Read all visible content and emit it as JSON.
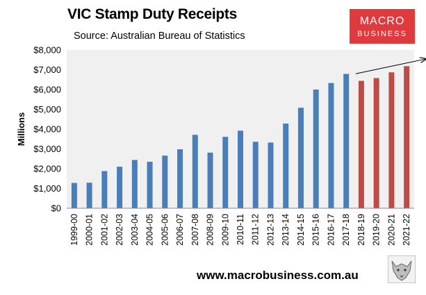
{
  "title": "VIC Stamp Duty Receipts",
  "subtitle": "Source: Australian Bureau of Statistics",
  "logo": {
    "line1": "MACRO",
    "line2": "BUSINESS",
    "color": "#e03a3e"
  },
  "footer_url": "www.macrobusiness.com.au",
  "chart_data": {
    "type": "bar",
    "ylabel": "Millions",
    "xlabel": "",
    "ylim": [
      0,
      8000
    ],
    "yticks": [
      0,
      1000,
      2000,
      3000,
      4000,
      5000,
      6000,
      7000,
      8000
    ],
    "ytick_labels": [
      "$0",
      "$1,000",
      "$2,000",
      "$3,000",
      "$4,000",
      "$5,000",
      "$6,000",
      "$7,000",
      "$8,000"
    ],
    "grid": false,
    "plot_background": "#f0f0f0",
    "categories": [
      "1999-00",
      "2000-01",
      "2001-02",
      "2002-03",
      "2003-04",
      "2004-05",
      "2005-06",
      "2006-07",
      "2007-08",
      "2008-09",
      "2009-10",
      "2010-11",
      "2011-12",
      "2012-13",
      "2013-14",
      "2014-15",
      "2015-16",
      "2016-17",
      "2017-18",
      "2018-19",
      "2019-20",
      "2020-21",
      "2021-22"
    ],
    "values": [
      1280,
      1290,
      1880,
      2100,
      2440,
      2350,
      2660,
      2980,
      3710,
      2810,
      3610,
      3920,
      3360,
      3320,
      4280,
      5080,
      6000,
      6330,
      6790,
      6440,
      6580,
      6870,
      7180
    ],
    "colors": [
      "#4a7ebb",
      "#4a7ebb",
      "#4a7ebb",
      "#4a7ebb",
      "#4a7ebb",
      "#4a7ebb",
      "#4a7ebb",
      "#4a7ebb",
      "#4a7ebb",
      "#4a7ebb",
      "#4a7ebb",
      "#4a7ebb",
      "#4a7ebb",
      "#4a7ebb",
      "#4a7ebb",
      "#4a7ebb",
      "#4a7ebb",
      "#4a7ebb",
      "#4a7ebb",
      "#be4b48",
      "#be4b48",
      "#be4b48",
      "#be4b48"
    ],
    "annotations": [
      {
        "type": "arrow",
        "from": {
          "x": "2018-19",
          "y": 6800
        },
        "to": {
          "x": "2021-22",
          "y": 7550
        }
      }
    ]
  }
}
